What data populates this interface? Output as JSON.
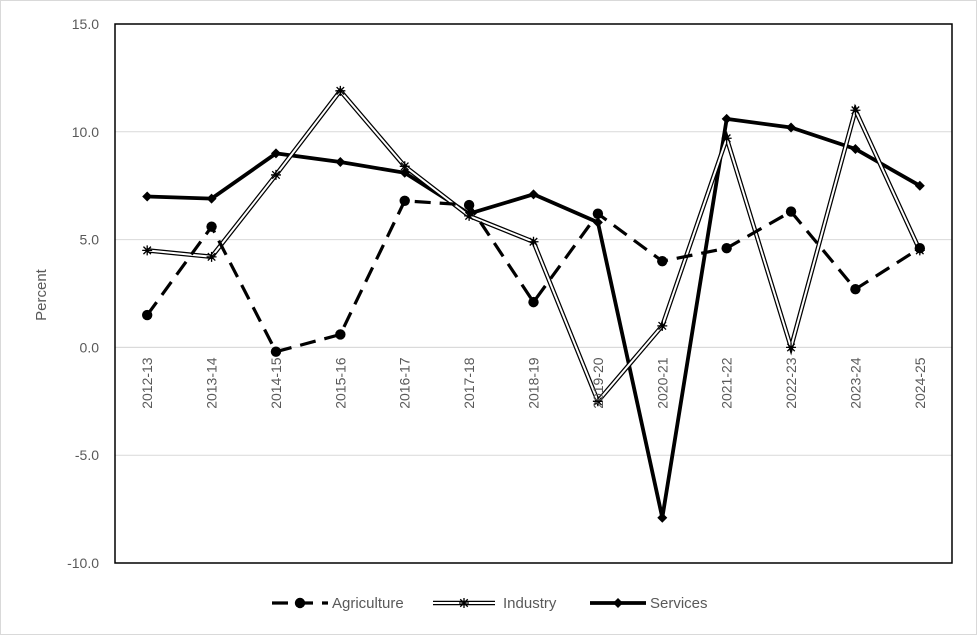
{
  "chart_data": {
    "type": "line",
    "title": "",
    "xlabel": "",
    "ylabel": "Percent",
    "ylim": [
      -10,
      15
    ],
    "yticks": [
      "15.0",
      "10.0",
      "5.0",
      "0.0",
      "-5.0",
      "-10.0"
    ],
    "ytick_values": [
      15,
      10,
      5,
      0,
      -5,
      -10
    ],
    "grid": "horizontal",
    "legend_position": "bottom",
    "categories": [
      "2012-13",
      "2013-14",
      "2014-15",
      "2015-16",
      "2016-17",
      "2017-18",
      "2018-19",
      "2019-20",
      "2020-21",
      "2021-22",
      "2022-23",
      "2023-24",
      "2024-25"
    ],
    "series": [
      {
        "name": "Agriculture",
        "style": "dashed-circle",
        "color": "#000000",
        "values": [
          1.5,
          5.6,
          -0.2,
          0.6,
          6.8,
          6.6,
          2.1,
          6.2,
          4.0,
          4.6,
          6.3,
          2.7,
          4.6
        ]
      },
      {
        "name": "Industry",
        "style": "double-star",
        "color": "#000000",
        "values": [
          4.5,
          4.2,
          8.0,
          11.9,
          8.4,
          6.1,
          4.9,
          -2.5,
          1.0,
          9.7,
          0.0,
          11.0,
          4.5
        ]
      },
      {
        "name": "Services",
        "style": "thick-diamond",
        "color": "#000000",
        "values": [
          7.0,
          6.9,
          9.0,
          8.6,
          8.1,
          6.2,
          7.1,
          5.8,
          -7.9,
          10.6,
          10.2,
          9.2,
          7.5
        ]
      }
    ]
  }
}
